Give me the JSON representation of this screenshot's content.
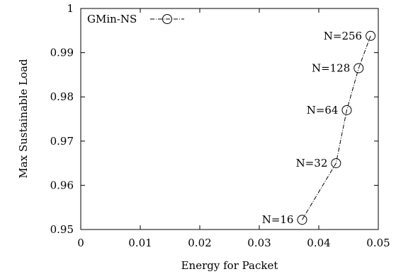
{
  "chart_data": {
    "type": "line",
    "title": "",
    "xlabel": "Energy for Packet",
    "ylabel": "Max Sustainable Load",
    "xlim": [
      0,
      0.05
    ],
    "ylim": [
      0.95,
      1.0
    ],
    "x_ticks": [
      "0",
      "0.01",
      "0.02",
      "0.03",
      "0.04",
      "0.05"
    ],
    "y_ticks": [
      "0.95",
      "0.96",
      "0.97",
      "0.98",
      "0.99",
      "1"
    ],
    "grid": false,
    "legend_position": "top-left",
    "series": [
      {
        "name": "GMin-NS",
        "marker": "circle",
        "line_style": "dash-dot",
        "color": "#000000",
        "x": [
          0.0372,
          0.0429,
          0.0447,
          0.0467,
          0.0487
        ],
        "y": [
          0.9522,
          0.965,
          0.977,
          0.9865,
          0.9938
        ],
        "point_labels": [
          "N=16",
          "N=32",
          "N=64",
          "N=128",
          "N=256"
        ]
      }
    ]
  }
}
